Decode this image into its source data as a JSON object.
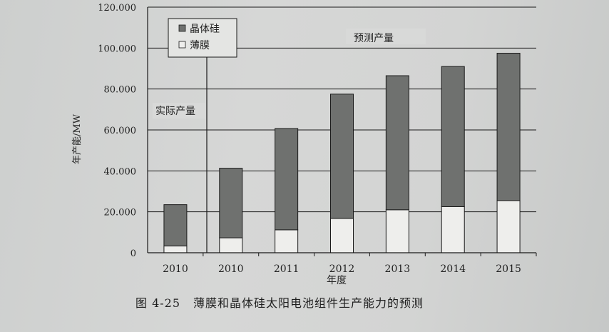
{
  "figure": {
    "number": "图 4-25",
    "caption": "薄膜和晶体硅太阳电池组件生产能力的预测"
  },
  "annotations": {
    "actual": "实际产量",
    "forecast": "预测产量"
  },
  "colors": {
    "crystalline": "#6f716f",
    "thin_film": "#eeeeec",
    "grid": "#1a1a1a"
  },
  "chart_data": {
    "type": "bar",
    "stacked": true,
    "categories": [
      "2010",
      "2010",
      "2011",
      "2012",
      "2013",
      "2014",
      "2015"
    ],
    "series": [
      {
        "name": "薄膜",
        "values": [
          3300,
          7300,
          11200,
          16800,
          21000,
          22500,
          25500
        ]
      },
      {
        "name": "晶体硅",
        "values": [
          20200,
          34000,
          49500,
          60700,
          65500,
          68500,
          72000
        ]
      }
    ],
    "totals": [
      23500,
      41300,
      60700,
      77500,
      86500,
      91000,
      97500
    ],
    "xlabel": "年度",
    "ylabel": "年产能/MW",
    "ylim": [
      0,
      120000
    ],
    "yticks": [
      "0",
      "20.000",
      "40.000",
      "60.000",
      "80.000",
      "100.000",
      "120.000"
    ],
    "grid": true,
    "legend": "top-left"
  }
}
